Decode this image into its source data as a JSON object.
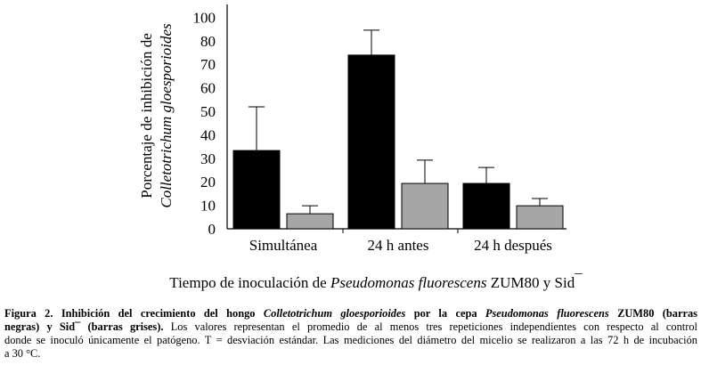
{
  "chart_data": {
    "type": "bar",
    "categories": [
      "Simultánea",
      "24 h antes",
      "24 h después"
    ],
    "series": [
      {
        "values": [
          33.3,
          73.9,
          19.3
        ],
        "errors_upper": [
          51.9,
          84.5,
          26.1
        ],
        "color": "#000000"
      },
      {
        "values": [
          6.4,
          19.3,
          9.8
        ],
        "errors_upper": [
          9.8,
          29.2,
          12.9
        ],
        "color": "#a6a6a6"
      }
    ],
    "y_tick_labels": [
      "0",
      "10",
      "20",
      "30",
      "40",
      "50",
      "60",
      "70",
      "80",
      "100"
    ],
    "ylim": [
      0,
      90
    ],
    "ylabel_line1": "Porcentaje de inhibición de",
    "ylabel_line2": "Colletotrichum gloesporioides",
    "xlabel_parts": [
      "Tiempo de inoculación de ",
      "Pseudomonas fluorescens",
      " ZUM80 y Sid",
      "¯"
    ],
    "grid": false,
    "legend": "none"
  },
  "caption": {
    "lines": [
      [
        {
          "t": "Figura 2. Inhibición del crecimiento del hongo ",
          "s": "b"
        },
        {
          "t": "Colletotrichum gloesporioides",
          "s": "bi"
        },
        {
          "t": " por la cepa ",
          "s": "b"
        },
        {
          "t": "Pseudomonas fluorescens",
          "s": "bi"
        },
        {
          "t": " ZUM80 (barras",
          "s": "b"
        }
      ],
      [
        {
          "t": "negras) y Sid¯ (barras grises).",
          "s": "b"
        },
        {
          "t": " Los valores representan el promedio de al menos tres repeticiones independientes con respecto al control",
          "s": ""
        }
      ],
      [
        {
          "t": "donde se inoculó únicamente el patógeno.  T = desviación estándar. Las mediciones del diámetro del micelio se realizaron a las 72 h de incubación",
          "s": ""
        }
      ],
      [
        {
          "t": "a 30 °C.",
          "s": ""
        }
      ]
    ]
  }
}
